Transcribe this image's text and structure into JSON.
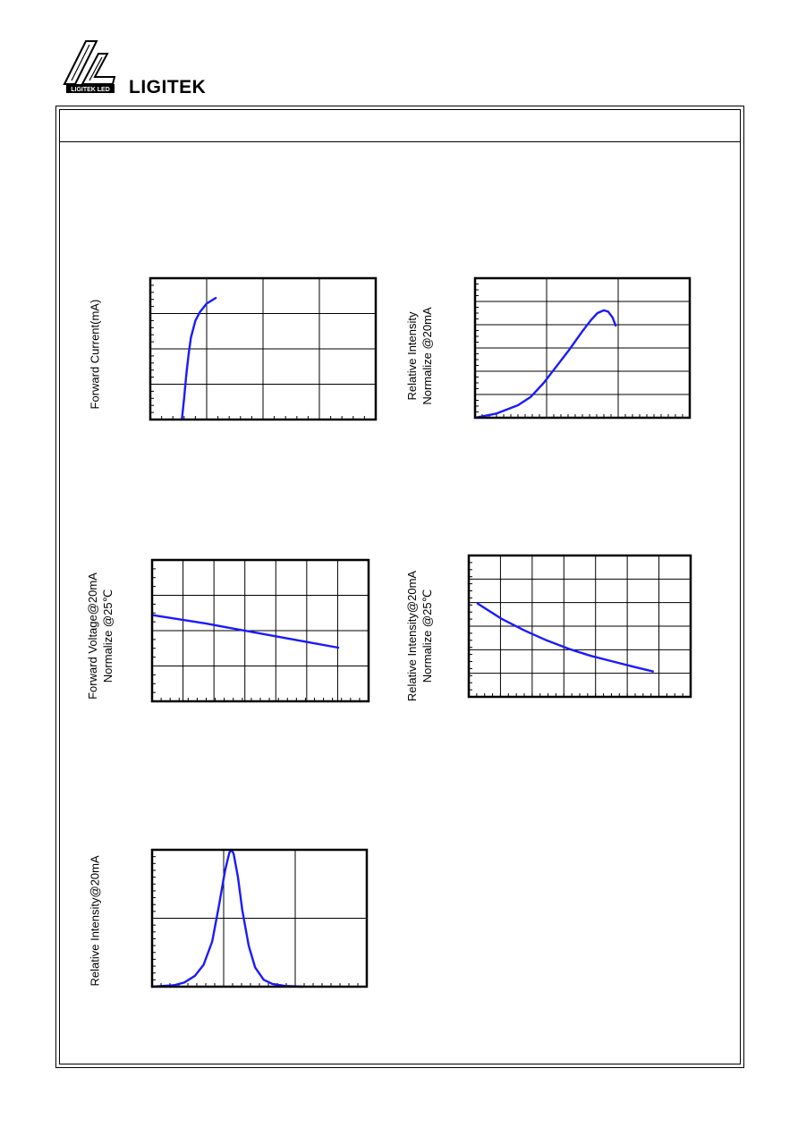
{
  "brand": {
    "name": "LIGITEK",
    "logo_text": "LIGITEK LED",
    "logo_icon": "ligitek-logo-icon"
  },
  "colors": {
    "curve": "#1a1aff",
    "frame": "#000000"
  },
  "charts": {
    "chart1": {
      "ylabel_lines": [
        "Forward Current(mA)"
      ]
    },
    "chart2": {
      "ylabel_lines": [
        "Relative Intensity",
        "Normalize @20mA"
      ]
    },
    "chart3": {
      "ylabel_lines": [
        "Forward Voltage@20mA",
        "Normalize @25℃"
      ]
    },
    "chart4": {
      "ylabel_lines": [
        "Relative Intensity@20mA",
        "Normalize @25℃"
      ]
    },
    "chart5": {
      "ylabel_lines": [
        "Relative Intensity@20mA"
      ]
    }
  },
  "chart_data": [
    {
      "type": "line",
      "ylabel": "Forward Current(mA)",
      "xlim": [
        0,
        1
      ],
      "ylim": [
        0,
        1
      ],
      "grid": true,
      "series": [
        {
          "x": [
            0.14,
            0.15,
            0.16,
            0.17,
            0.18,
            0.2,
            0.22,
            0.25,
            0.29
          ],
          "y": [
            0.0,
            0.15,
            0.32,
            0.46,
            0.58,
            0.7,
            0.76,
            0.82,
            0.86
          ]
        }
      ]
    },
    {
      "type": "line",
      "ylabel": "Relative Intensity Normalize @20mA",
      "xlim": [
        0,
        1
      ],
      "ylim": [
        0,
        1
      ],
      "grid": true,
      "series": [
        {
          "x": [
            0.0,
            0.1,
            0.2,
            0.26,
            0.32,
            0.38,
            0.44,
            0.5,
            0.54,
            0.57,
            0.6,
            0.62,
            0.64,
            0.655
          ],
          "y": [
            0.0,
            0.03,
            0.09,
            0.15,
            0.25,
            0.37,
            0.49,
            0.62,
            0.7,
            0.75,
            0.77,
            0.76,
            0.72,
            0.66
          ]
        }
      ]
    },
    {
      "type": "line",
      "ylabel": "Forward Voltage@20mA Normalize @25℃",
      "xlim": [
        0,
        1
      ],
      "ylim": [
        0,
        1
      ],
      "grid": true,
      "series": [
        {
          "x": [
            0.0,
            0.25,
            0.5,
            0.75,
            0.86
          ],
          "y": [
            0.61,
            0.55,
            0.48,
            0.41,
            0.38
          ]
        }
      ]
    },
    {
      "type": "line",
      "ylabel": "Relative Intensity@20mA Normalize @25℃",
      "xlim": [
        0,
        1
      ],
      "ylim": [
        0,
        1
      ],
      "grid": true,
      "series": [
        {
          "x": [
            0.04,
            0.15,
            0.25,
            0.35,
            0.45,
            0.55,
            0.65,
            0.75,
            0.83
          ],
          "y": [
            0.66,
            0.55,
            0.47,
            0.4,
            0.34,
            0.29,
            0.25,
            0.21,
            0.18
          ]
        }
      ]
    },
    {
      "type": "line",
      "ylabel": "Relative Intensity@20mA",
      "xlim": [
        0,
        1
      ],
      "ylim": [
        0,
        1
      ],
      "grid": true,
      "series": [
        {
          "x": [
            0.0,
            0.1,
            0.15,
            0.2,
            0.24,
            0.28,
            0.31,
            0.34,
            0.36,
            0.37,
            0.38,
            0.4,
            0.42,
            0.45,
            0.48,
            0.52,
            0.56,
            0.62,
            0.7
          ],
          "y": [
            0.0,
            0.01,
            0.03,
            0.08,
            0.16,
            0.33,
            0.58,
            0.85,
            0.98,
            1.0,
            0.97,
            0.8,
            0.56,
            0.3,
            0.14,
            0.05,
            0.02,
            0.005,
            0.0
          ]
        }
      ]
    }
  ]
}
